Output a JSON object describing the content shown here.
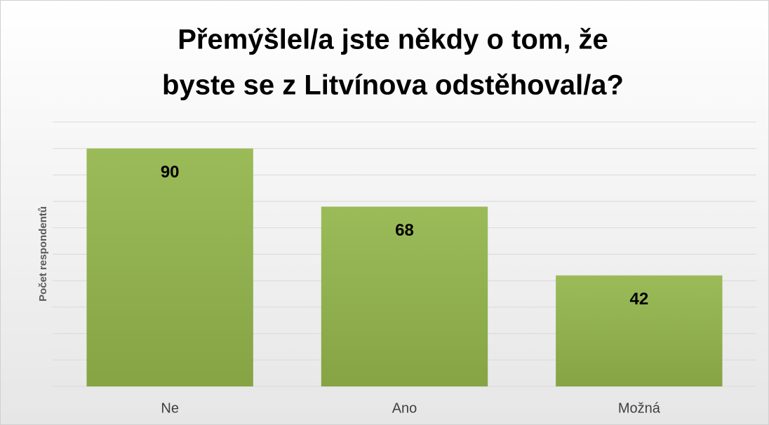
{
  "chart_data": {
    "type": "bar",
    "title": [
      "Přemýšlel/a jste někdy o tom, že",
      "byste se z Litvínova odstěhoval/a?"
    ],
    "y_label": "Počet respondentů",
    "categories": [
      "Ne",
      "Ano",
      "Možná"
    ],
    "values": [
      90,
      68,
      42
    ],
    "color": "#8fb04f",
    "ylim": [
      0,
      100
    ],
    "yticks": [
      0,
      10,
      20,
      30,
      40,
      50,
      60,
      70,
      80,
      90,
      100
    ],
    "grid": true
  }
}
